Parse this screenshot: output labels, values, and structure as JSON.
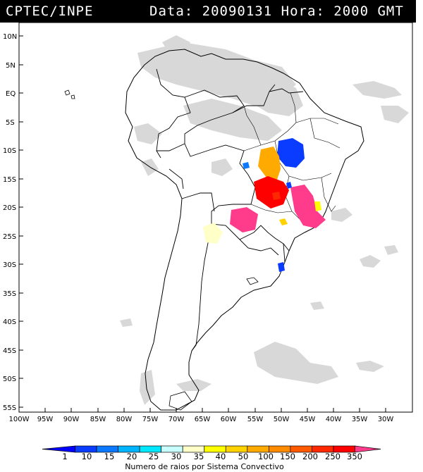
{
  "header": {
    "org": "CPTEC/INPE",
    "data_label": "Data:",
    "date": "20090131",
    "hora_label": "Hora:",
    "time": "2000 GMT"
  },
  "axes": {
    "lat_labels": [
      "10N",
      "5N",
      "EQ",
      "5S",
      "10S",
      "15S",
      "20S",
      "25S",
      "30S",
      "35S",
      "40S",
      "45S",
      "50S",
      "55S"
    ],
    "lon_labels": [
      "100W",
      "95W",
      "90W",
      "85W",
      "80W",
      "75W",
      "70W",
      "65W",
      "60W",
      "55W",
      "50W",
      "45W",
      "40W",
      "35W",
      "30W"
    ]
  },
  "legend": {
    "levels": [
      "1",
      "10",
      "15",
      "20",
      "25",
      "30",
      "35",
      "40",
      "50",
      "100",
      "150",
      "200",
      "250",
      "350"
    ],
    "colors": [
      "#0000ff",
      "#0a3cff",
      "#0a78ff",
      "#00b4ff",
      "#00e8ff",
      "#c8ffff",
      "#ffffc8",
      "#ffff00",
      "#ffd200",
      "#ffaa00",
      "#ff8c00",
      "#ff5a00",
      "#ff2800",
      "#ff0000",
      "#ff3c8c"
    ],
    "caption": "Numero de raios por Sistema Convectivo"
  },
  "palette": {
    "cloud": "#d4d4d4",
    "coast": "#000000"
  }
}
